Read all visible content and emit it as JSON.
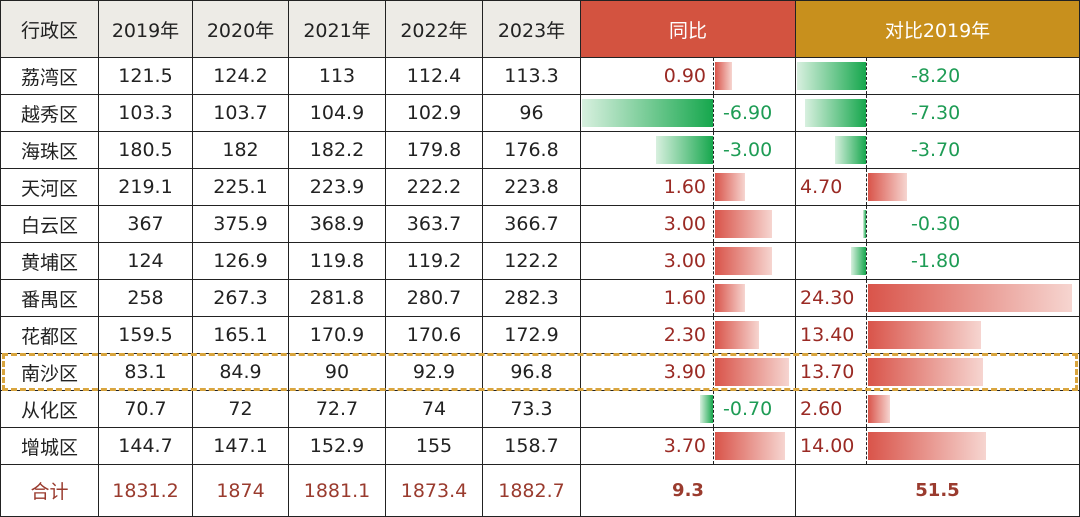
{
  "headers": [
    "行政区",
    "2019年",
    "2020年",
    "2021年",
    "2022年",
    "2023年",
    "同比",
    "对比2019年"
  ],
  "rows": [
    {
      "district": "荔湾区",
      "values": [
        "121.5",
        "124.2",
        "113",
        "112.4",
        "113.3"
      ],
      "yoy": "0.90",
      "vs2019": "-8.20"
    },
    {
      "district": "越秀区",
      "values": [
        "103.3",
        "103.7",
        "104.9",
        "102.9",
        "96"
      ],
      "yoy": "-6.90",
      "vs2019": "-7.30"
    },
    {
      "district": "海珠区",
      "values": [
        "180.5",
        "182",
        "182.2",
        "179.8",
        "176.8"
      ],
      "yoy": "-3.00",
      "vs2019": "-3.70"
    },
    {
      "district": "天河区",
      "values": [
        "219.1",
        "225.1",
        "223.9",
        "222.2",
        "223.8"
      ],
      "yoy": "1.60",
      "vs2019": "4.70"
    },
    {
      "district": "白云区",
      "values": [
        "367",
        "375.9",
        "368.9",
        "363.7",
        "366.7"
      ],
      "yoy": "3.00",
      "vs2019": "-0.30"
    },
    {
      "district": "黄埔区",
      "values": [
        "124",
        "126.9",
        "119.8",
        "119.2",
        "122.2"
      ],
      "yoy": "3.00",
      "vs2019": "-1.80"
    },
    {
      "district": "番禺区",
      "values": [
        "258",
        "267.3",
        "281.8",
        "280.7",
        "282.3"
      ],
      "yoy": "1.60",
      "vs2019": "24.30"
    },
    {
      "district": "花都区",
      "values": [
        "159.5",
        "165.1",
        "170.9",
        "170.6",
        "172.9"
      ],
      "yoy": "2.30",
      "vs2019": "13.40"
    },
    {
      "district": "南沙区",
      "values": [
        "83.1",
        "84.9",
        "90",
        "92.9",
        "96.8"
      ],
      "yoy": "3.90",
      "vs2019": "13.70",
      "highlighted": true
    },
    {
      "district": "从化区",
      "values": [
        "70.7",
        "72",
        "72.7",
        "74",
        "73.3"
      ],
      "yoy": "-0.70",
      "vs2019": "2.60"
    },
    {
      "district": "增城区",
      "values": [
        "144.7",
        "147.1",
        "152.9",
        "155",
        "158.7"
      ],
      "yoy": "3.70",
      "vs2019": "14.00"
    }
  ],
  "total": {
    "label": "合计",
    "values": [
      "1831.2",
      "1874",
      "1881.1",
      "1873.4",
      "1882.7"
    ],
    "yoy": "9.3",
    "vs2019": "51.5"
  },
  "colors": {
    "yoy_header": "#D35340",
    "vs_header": "#C8901D",
    "positive": "#D9544A",
    "negative": "#16A74D",
    "highlight": "#D9A53E"
  }
}
